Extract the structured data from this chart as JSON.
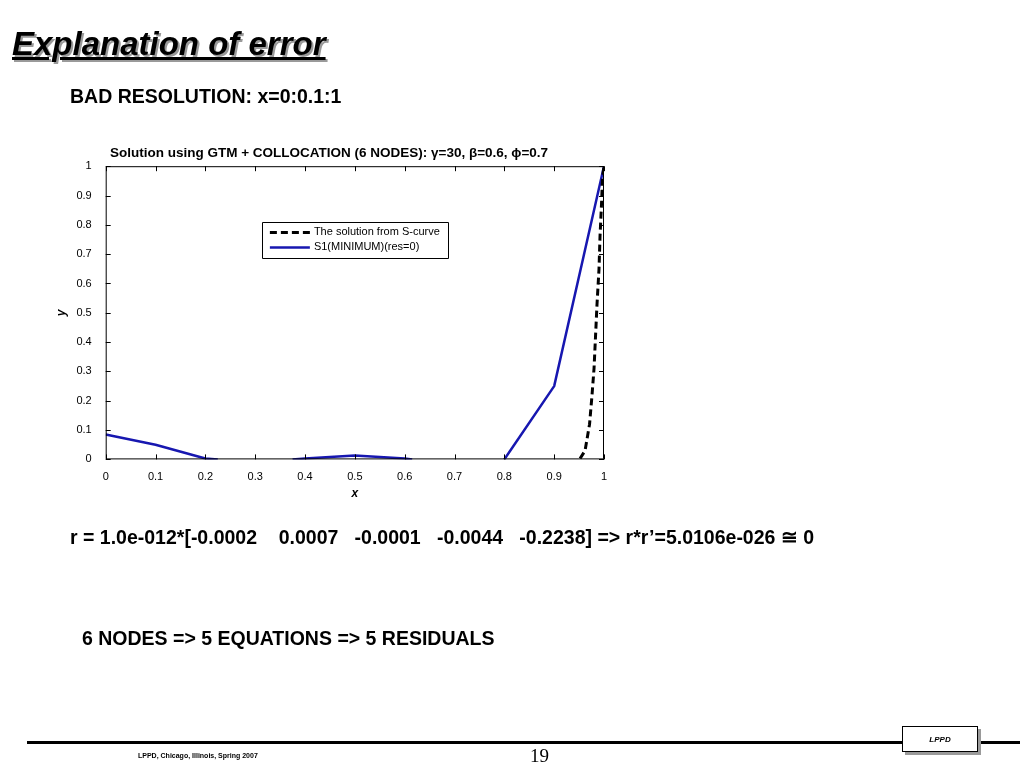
{
  "chart_data": {
    "type": "line",
    "title": "Solution using GTM + COLLOCATION (6 NODES): γ=30, β=0.6, ϕ=0.7",
    "xlabel": "x",
    "ylabel": "y",
    "xlim": [
      0,
      1
    ],
    "xticks": [
      0,
      0.1,
      0.2,
      0.3,
      0.4,
      0.5,
      0.6,
      0.7,
      0.8,
      0.9,
      1
    ],
    "ylim": [
      0,
      1
    ],
    "yticks": [
      0,
      0.1,
      0.2,
      0.3,
      0.4,
      0.5,
      0.6,
      0.7,
      0.8,
      0.9,
      1
    ],
    "legend": "top",
    "marker": "none",
    "series": [
      {
        "name": "The solution from S-curve",
        "color": "#000000",
        "line_style": "dashed",
        "x": [
          0.952,
          0.962,
          0.971,
          0.976,
          0.98,
          0.983,
          0.986,
          0.99,
          0.992,
          0.995,
          0.997,
          1
        ],
        "values": [
          0.003,
          0.03,
          0.12,
          0.22,
          0.31,
          0.42,
          0.53,
          0.65,
          0.76,
          0.87,
          0.96,
          1
        ]
      },
      {
        "name": "S1(MINIMUM)(res=0)",
        "color": "#1717b0",
        "line_style": "solid",
        "x": [
          0,
          0.1,
          0.2,
          0.225,
          0.3,
          0.375,
          0.4,
          0.5,
          0.6,
          0.615,
          0.7,
          0.8,
          0.9,
          1
        ],
        "values": [
          0.085,
          0.05,
          0.003,
          0,
          null,
          0,
          0.003,
          0.013,
          0.003,
          0,
          null,
          0,
          0.25,
          1
        ]
      }
    ],
    "annotations": [
      "Explanation of error",
      "BAD RESOLUTION: x=0:0.1:1",
      "r = 1.0e-012*[-0.0002    0.0007   -0.0001   -0.0044   -0.2238] => r*r’=5.0106e-026 ≅ 0",
      "6 NODES => 5 EQUATIONS => 5 RESIDUALS",
      "LPPD, Chicago, Illinois, Spring 2007",
      "19",
      "LPPD"
    ]
  }
}
